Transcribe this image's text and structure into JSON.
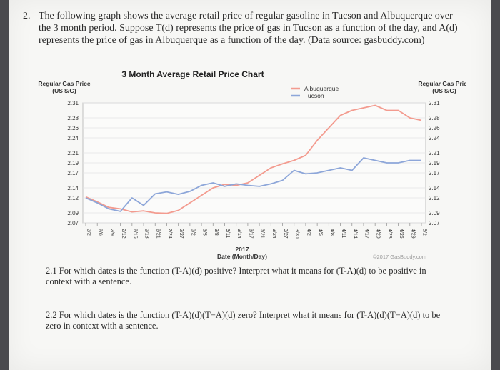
{
  "question": {
    "number": "2.",
    "text": "The following graph shows the average retail price of regular gasoline in Tucson and Albuquerque over the 3 month period. Suppose T(d) represents the price of gas in Tucson as a function of the day, and A(d) represents the price of gas in Albuquerque as a function of the day. (Data source: gasbuddy.com)"
  },
  "chart_data": {
    "type": "line",
    "title": "3 Month Average Retail Price Chart",
    "ylabel_left": "Regular Gas Price (US $/G)",
    "ylabel_right": "Regular Gas Price (US $/G)",
    "xlabel": "Date (Month/Day)",
    "year_label": "2017",
    "credit": "©2017 GasBuddy.com",
    "y_ticks": [
      "2.31",
      "2.28",
      "2.26",
      "2.24",
      "2.21",
      "2.19",
      "2.17",
      "2.14",
      "2.12",
      "2.09",
      "2.07"
    ],
    "ylim": [
      2.07,
      2.31
    ],
    "x_ticks": [
      "2/2",
      "2/6",
      "2/9",
      "2/12",
      "2/15",
      "2/18",
      "2/21",
      "2/24",
      "2/27",
      "3/2",
      "3/5",
      "3/8",
      "3/11",
      "3/14",
      "3/17",
      "3/21",
      "3/24",
      "3/27",
      "3/30",
      "4/2",
      "4/5",
      "4/8",
      "4/11",
      "4/14",
      "4/17",
      "4/20",
      "4/23",
      "4/26",
      "4/29",
      "5/2"
    ],
    "legend_position": "top-right",
    "series": [
      {
        "name": "Albuquerque",
        "color": "#f39b8f",
        "values": [
          2.122,
          2.112,
          2.101,
          2.098,
          2.092,
          2.094,
          2.09,
          2.089,
          2.095,
          2.11,
          2.125,
          2.14,
          2.147,
          2.145,
          2.15,
          2.165,
          2.18,
          2.188,
          2.195,
          2.205,
          2.235,
          2.26,
          2.285,
          2.295,
          2.3,
          2.305,
          2.295,
          2.295,
          2.28,
          2.275
        ]
      },
      {
        "name": "Tucson",
        "color": "#8da6d9",
        "values": [
          2.12,
          2.11,
          2.098,
          2.093,
          2.12,
          2.105,
          2.128,
          2.132,
          2.127,
          2.133,
          2.145,
          2.15,
          2.143,
          2.148,
          2.145,
          2.143,
          2.148,
          2.155,
          2.175,
          2.168,
          2.17,
          2.175,
          2.18,
          2.175,
          2.2,
          2.195,
          2.19,
          2.19,
          2.195,
          2.195
        ]
      }
    ]
  },
  "sub_questions": [
    {
      "text": "2.1 For which dates is the function (T-A)(d) positive? Interpret what it means for (T-A)(d) to be positive in context with a sentence."
    },
    {
      "text": "2.2 For which dates is the function (T-A)(d)(T−A)(d) zero? Interpret what it means for (T-A)(d)(T−A)(d) to be zero in context with a sentence."
    }
  ]
}
